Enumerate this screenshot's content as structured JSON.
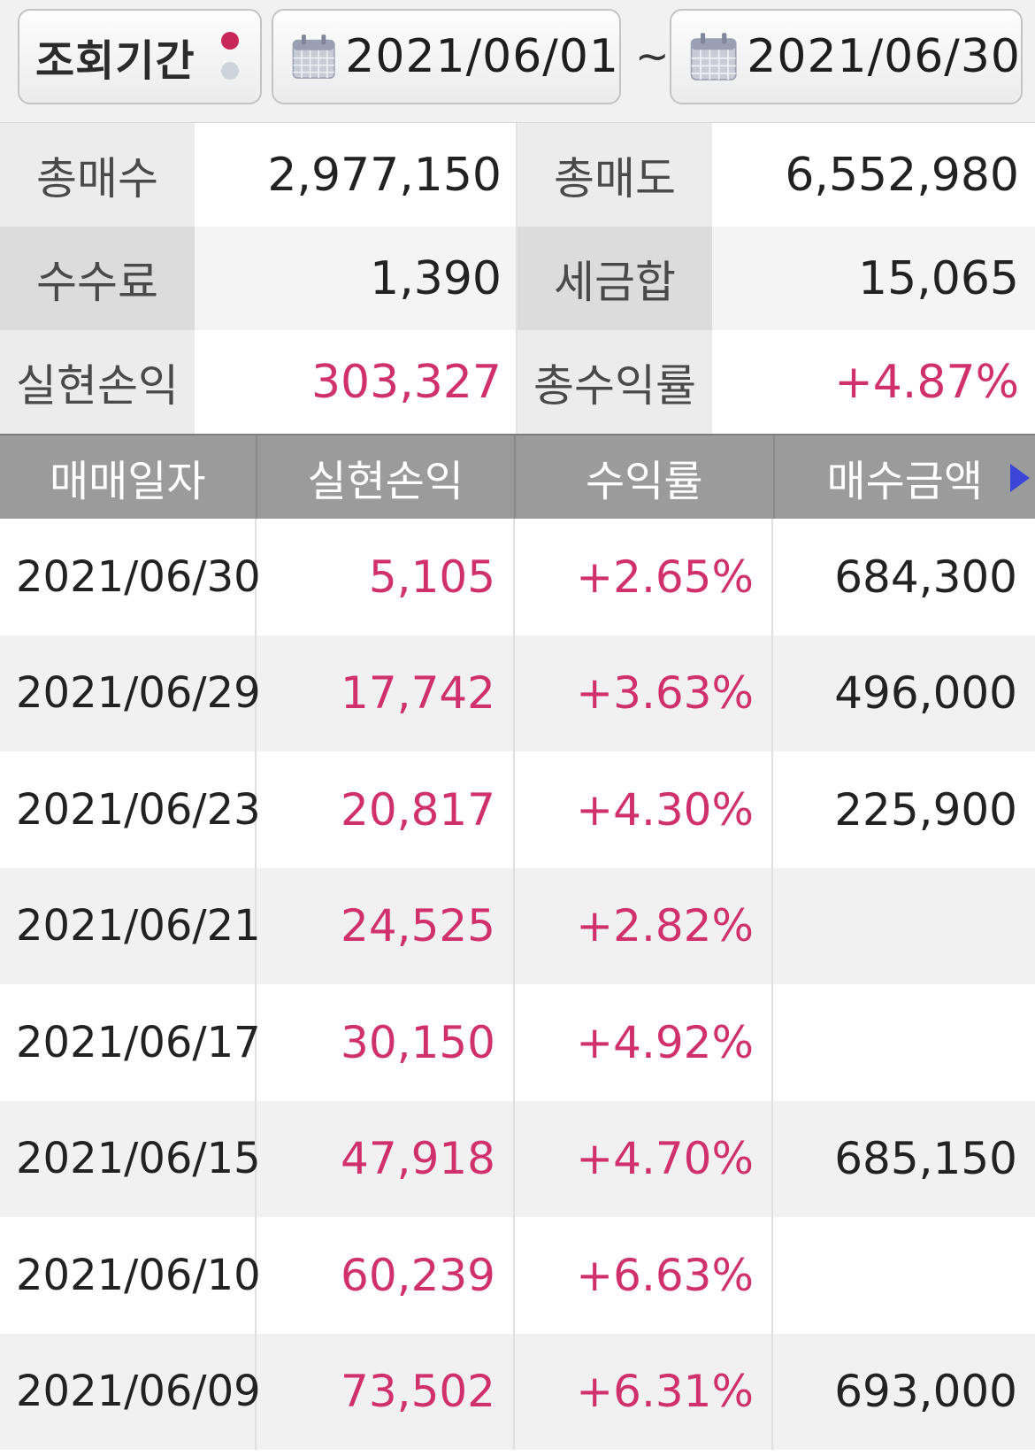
{
  "period": {
    "label": "조회기간",
    "start_date": "2021/06/01",
    "separator": "~",
    "end_date": "2021/06/30"
  },
  "summary": {
    "rows": [
      {
        "l1": "총매수",
        "v1": "2,977,150",
        "l2": "총매도",
        "v2": "6,552,980"
      },
      {
        "l1": "수수료",
        "v1": "1,390",
        "l2": "세금합",
        "v2": "15,065"
      },
      {
        "l1": "실현손익",
        "v1": "303,327",
        "l2": "총수익률",
        "v2": "+4.87%"
      }
    ]
  },
  "table": {
    "headers": [
      "매매일자",
      "실현손익",
      "수익률",
      "매수금액"
    ],
    "rows": [
      {
        "date": "2021/06/30",
        "profit": "5,105",
        "rate": "+2.65%",
        "buy": "684,300"
      },
      {
        "date": "2021/06/29",
        "profit": "17,742",
        "rate": "+3.63%",
        "buy": "496,000"
      },
      {
        "date": "2021/06/23",
        "profit": "20,817",
        "rate": "+4.30%",
        "buy": "225,900"
      },
      {
        "date": "2021/06/21",
        "profit": "24,525",
        "rate": "+2.82%",
        "buy": ""
      },
      {
        "date": "2021/06/17",
        "profit": "30,150",
        "rate": "+4.92%",
        "buy": ""
      },
      {
        "date": "2021/06/15",
        "profit": "47,918",
        "rate": "+4.70%",
        "buy": "685,150"
      },
      {
        "date": "2021/06/10",
        "profit": "60,239",
        "rate": "+6.63%",
        "buy": ""
      },
      {
        "date": "2021/06/09",
        "profit": "73,502",
        "rate": "+6.31%",
        "buy": "693,000"
      }
    ]
  },
  "colors": {
    "positive": "#d0306c",
    "header_bg": "#9b9b9b",
    "accent_dot": "#c8285a"
  },
  "icons": {
    "date_picker": "calendar-icon",
    "scroll_right": "arrow-right-icon"
  }
}
